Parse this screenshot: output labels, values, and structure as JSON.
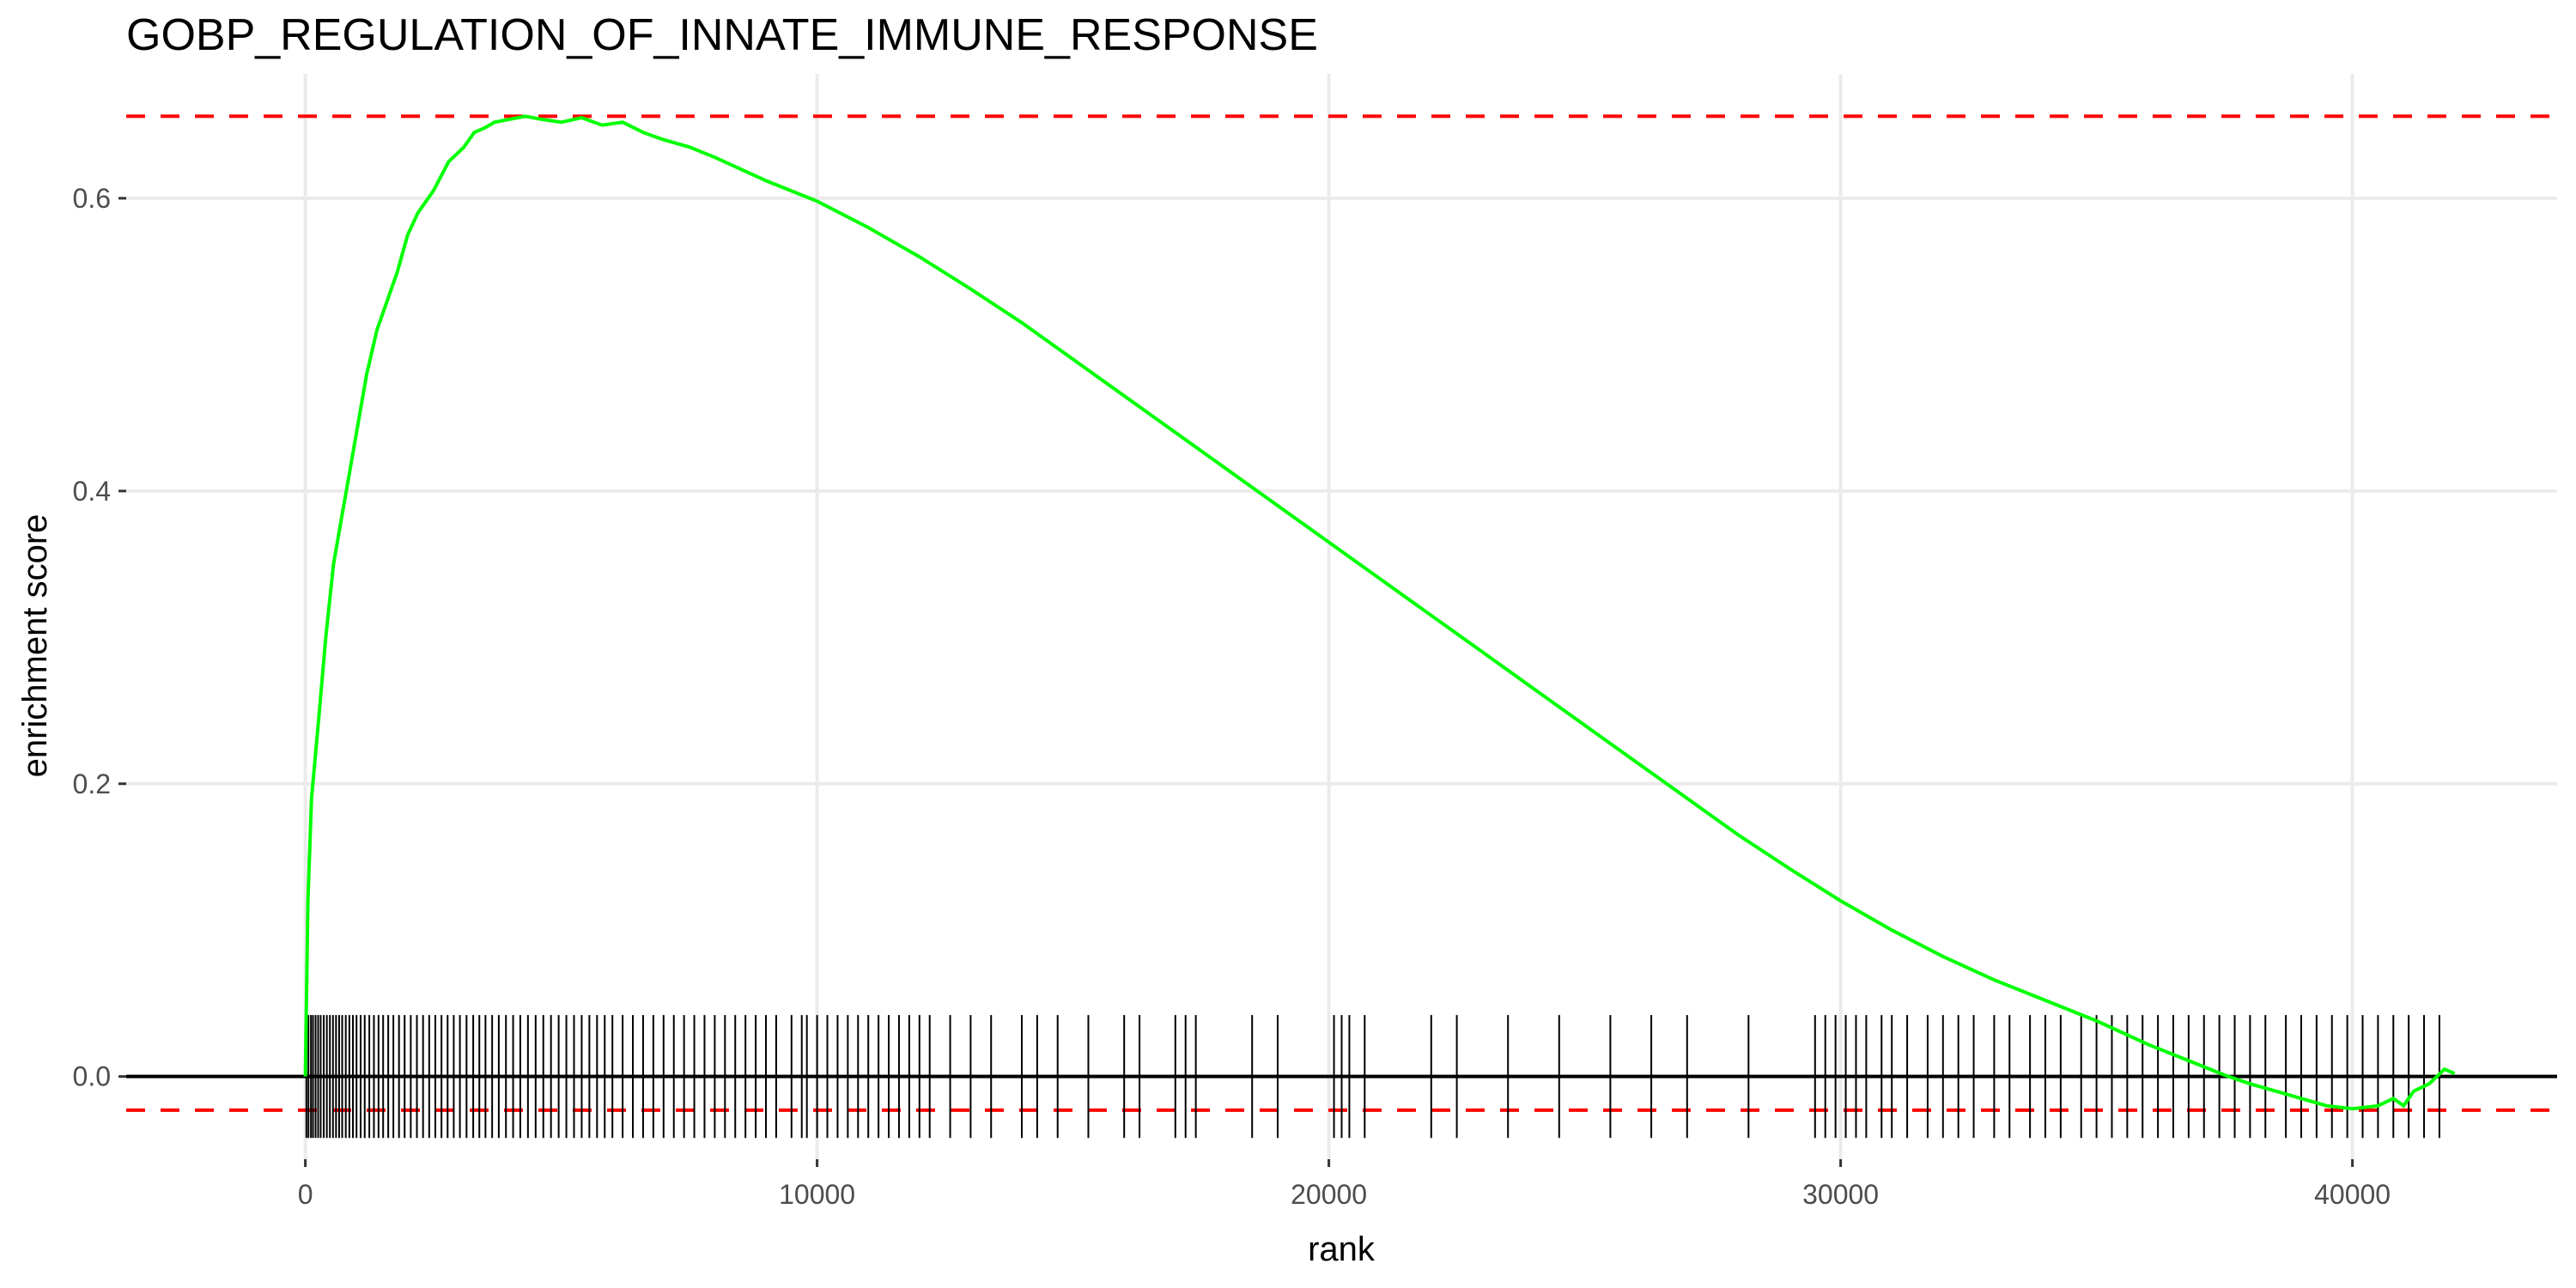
{
  "chart_data": {
    "type": "line",
    "title": "GOBP_REGULATION_OF_INNATE_IMMUNE_RESPONSE",
    "xlabel": "rank",
    "ylabel": "enrichment score",
    "xlim": [
      -3500,
      44000
    ],
    "ylim": [
      -0.0565,
      0.685
    ],
    "x_ticks": [
      0,
      10000,
      20000,
      30000,
      40000
    ],
    "x_tick_labels": [
      "0",
      "10000",
      "20000",
      "30000",
      "40000"
    ],
    "y_ticks": [
      0.0,
      0.2,
      0.4,
      0.6
    ],
    "y_tick_labels": [
      "0.0",
      "0.2",
      "0.4",
      "0.6"
    ],
    "grid": true,
    "reference_lines": [
      {
        "y": 0.656,
        "style": "dashed",
        "color": "#ff0000"
      },
      {
        "y": -0.023,
        "style": "dashed",
        "color": "#ff0000"
      },
      {
        "y": 0.0,
        "style": "solid",
        "color": "#000000"
      }
    ],
    "series": [
      {
        "color": "#00ff00",
        "x": [
          0,
          50,
          120,
          250,
          400,
          550,
          700,
          850,
          1000,
          1200,
          1400,
          1600,
          1800,
          2000,
          2200,
          2500,
          2800,
          3100,
          3300,
          3500,
          3700,
          4000,
          4300,
          4600,
          5000,
          5400,
          5800,
          6200,
          6600,
          7000,
          7500,
          8000,
          8500,
          9000,
          9500,
          10000,
          11000,
          12000,
          13000,
          14000,
          15000,
          16000,
          17000,
          18000,
          19000,
          20000,
          21000,
          22000,
          23000,
          24000,
          25000,
          26000,
          27000,
          28000,
          29000,
          30000,
          31000,
          32000,
          33000,
          34000,
          35000,
          35500,
          36000,
          36500,
          37000,
          37500,
          38000,
          38500,
          39000,
          39500,
          40000,
          40500,
          40800,
          41000,
          41200,
          41500,
          41800,
          42000
        ],
        "y": [
          0.0,
          0.12,
          0.19,
          0.24,
          0.3,
          0.35,
          0.38,
          0.41,
          0.44,
          0.48,
          0.51,
          0.53,
          0.55,
          0.575,
          0.59,
          0.605,
          0.625,
          0.635,
          0.645,
          0.648,
          0.652,
          0.654,
          0.656,
          0.654,
          0.652,
          0.655,
          0.65,
          0.652,
          0.645,
          0.64,
          0.635,
          0.628,
          0.62,
          0.612,
          0.605,
          0.598,
          0.58,
          0.56,
          0.538,
          0.515,
          0.49,
          0.465,
          0.44,
          0.415,
          0.39,
          0.365,
          0.34,
          0.315,
          0.29,
          0.265,
          0.24,
          0.215,
          0.19,
          0.165,
          0.142,
          0.12,
          0.1,
          0.082,
          0.066,
          0.052,
          0.038,
          0.03,
          0.022,
          0.015,
          0.008,
          0.001,
          -0.005,
          -0.01,
          -0.015,
          -0.02,
          -0.022,
          -0.02,
          -0.015,
          -0.02,
          -0.01,
          -0.005,
          0.005,
          0.002
        ]
      }
    ],
    "hits": [
      20,
      60,
      110,
      150,
      200,
      250,
      300,
      360,
      420,
      480,
      540,
      600,
      660,
      720,
      790,
      860,
      930,
      1000,
      1080,
      1160,
      1250,
      1340,
      1430,
      1520,
      1620,
      1720,
      1830,
      1940,
      2060,
      2180,
      2300,
      2420,
      2540,
      2660,
      2780,
      2900,
      3020,
      3150,
      3280,
      3400,
      3520,
      3650,
      3780,
      3920,
      4060,
      4200,
      4350,
      4500,
      4650,
      4800,
      4950,
      5100,
      5250,
      5400,
      5550,
      5700,
      5850,
      6000,
      6200,
      6400,
      6600,
      6800,
      7000,
      7200,
      7400,
      7600,
      7800,
      8000,
      8200,
      8400,
      8600,
      8800,
      9000,
      9200,
      9500,
      9700,
      9800,
      10000,
      10200,
      10400,
      10600,
      10800,
      11000,
      11200,
      11400,
      11600,
      11800,
      12000,
      12200,
      12600,
      13000,
      13400,
      14000,
      14300,
      14700,
      15300,
      16000,
      16300,
      17000,
      17200,
      17400,
      18500,
      19000,
      20100,
      20250,
      20400,
      20700,
      22000,
      22500,
      23500,
      24500,
      25500,
      26300,
      27000,
      28200,
      29500,
      29700,
      29900,
      30100,
      30300,
      30500,
      30800,
      31000,
      31300,
      31700,
      32000,
      32300,
      32600,
      33000,
      33300,
      33700,
      34000,
      34300,
      34700,
      35000,
      35300,
      35600,
      35900,
      36200,
      36500,
      36800,
      37100,
      37400,
      37700,
      38000,
      38300,
      38700,
      39000,
      39300,
      39600,
      39900,
      40200,
      40500,
      40800,
      41100,
      41400,
      41700
    ]
  }
}
